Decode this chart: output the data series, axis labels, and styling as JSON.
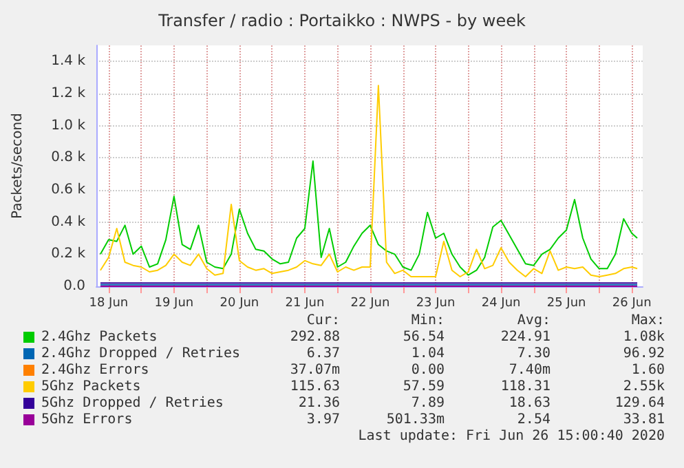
{
  "chart_data": {
    "type": "line",
    "title": "Transfer / radio : Portaikko : NWPS - by week",
    "ylabel": "Packets/second",
    "x": [
      "2020-06-18T09:00",
      "2020-06-18T12:00",
      "2020-06-18T15:00",
      "2020-06-18T18:00",
      "2020-06-18T21:00",
      "2020-06-19T00:00",
      "2020-06-19T03:00",
      "2020-06-19T06:00",
      "2020-06-19T09:00",
      "2020-06-19T12:00",
      "2020-06-19T15:00",
      "2020-06-19T18:00",
      "2020-06-19T21:00",
      "2020-06-20T00:00",
      "2020-06-20T03:00",
      "2020-06-20T06:00",
      "2020-06-20T09:00",
      "2020-06-20T12:00",
      "2020-06-20T15:00",
      "2020-06-20T18:00",
      "2020-06-20T21:00",
      "2020-06-21T00:00",
      "2020-06-21T03:00",
      "2020-06-21T06:00",
      "2020-06-21T09:00",
      "2020-06-21T12:00",
      "2020-06-21T15:00",
      "2020-06-21T18:00",
      "2020-06-21T21:00",
      "2020-06-22T00:00",
      "2020-06-22T03:00",
      "2020-06-22T06:00",
      "2020-06-22T09:00",
      "2020-06-22T12:00",
      "2020-06-22T15:00",
      "2020-06-22T18:00",
      "2020-06-22T21:00",
      "2020-06-23T00:00",
      "2020-06-23T03:00",
      "2020-06-23T06:00",
      "2020-06-23T09:00",
      "2020-06-23T12:00",
      "2020-06-23T15:00",
      "2020-06-23T18:00",
      "2020-06-23T21:00",
      "2020-06-24T00:00",
      "2020-06-24T03:00",
      "2020-06-24T06:00",
      "2020-06-24T09:00",
      "2020-06-24T12:00",
      "2020-06-24T15:00",
      "2020-06-24T18:00",
      "2020-06-24T21:00",
      "2020-06-25T00:00",
      "2020-06-25T03:00",
      "2020-06-25T06:00",
      "2020-06-25T09:00",
      "2020-06-25T12:00",
      "2020-06-25T15:00",
      "2020-06-25T18:00",
      "2020-06-25T21:00",
      "2020-06-26T00:00",
      "2020-06-26T03:00",
      "2020-06-26T06:00",
      "2020-06-26T09:00",
      "2020-06-26T12:00",
      "2020-06-26T14:00"
    ],
    "series": [
      {
        "name": "2.4Ghz Packets",
        "color": "#00cc00",
        "values": [
          200,
          290,
          280,
          380,
          200,
          250,
          120,
          140,
          290,
          560,
          260,
          230,
          380,
          150,
          120,
          110,
          200,
          480,
          330,
          230,
          220,
          170,
          140,
          150,
          300,
          360,
          780,
          180,
          360,
          120,
          150,
          250,
          330,
          380,
          260,
          220,
          200,
          120,
          100,
          200,
          460,
          300,
          330,
          200,
          120,
          70,
          100,
          180,
          370,
          410,
          320,
          230,
          140,
          130,
          200,
          230,
          300,
          350,
          540,
          300,
          170,
          110,
          110,
          200,
          420,
          330,
          300
        ]
      },
      {
        "name": "2.4Ghz Dropped / Retries",
        "color": "#0066b3",
        "x": [
          "2020-06-18T09:00",
          "2020-06-19T12:00",
          "2020-06-20T12:00",
          "2020-06-21T12:00",
          "2020-06-22T12:00",
          "2020-06-23T12:00",
          "2020-06-24T12:00",
          "2020-06-25T12:00",
          "2020-06-26T14:00"
        ],
        "values": [
          10,
          10,
          10,
          10,
          10,
          10,
          10,
          10,
          10
        ]
      },
      {
        "name": "2.4Ghz Errors",
        "color": "#ff8000",
        "values": [
          null,
          null,
          null,
          null,
          null,
          null,
          null,
          null,
          null,
          null,
          null,
          null,
          null,
          null,
          null,
          null,
          null,
          null,
          null,
          null,
          null,
          null,
          null,
          null,
          null,
          null,
          null,
          null,
          null,
          null,
          null,
          null,
          null,
          null,
          null,
          null,
          null,
          null,
          null,
          null,
          null,
          null,
          null,
          null,
          null,
          null,
          null,
          null,
          null,
          null,
          null,
          null,
          null,
          null,
          null,
          null,
          null,
          null,
          null,
          null,
          null,
          null,
          null,
          null,
          null,
          null,
          null
        ]
      },
      {
        "name": "5Ghz Packets",
        "color": "#ffcc00",
        "values": [
          100,
          180,
          360,
          150,
          130,
          120,
          90,
          100,
          130,
          200,
          150,
          130,
          200,
          110,
          70,
          80,
          510,
          160,
          120,
          100,
          110,
          80,
          90,
          100,
          120,
          160,
          140,
          130,
          200,
          90,
          120,
          100,
          120,
          120,
          1250,
          150,
          80,
          100,
          60,
          60,
          60,
          60,
          280,
          100,
          60,
          90,
          230,
          110,
          130,
          240,
          150,
          100,
          60,
          110,
          80,
          220,
          100,
          120,
          110,
          120,
          70,
          60,
          70,
          80,
          110,
          120,
          110
        ]
      },
      {
        "name": "5Ghz Dropped / Retries",
        "color": "#330099",
        "x": [
          "2020-06-18T09:00",
          "2020-06-19T12:00",
          "2020-06-20T12:00",
          "2020-06-21T12:00",
          "2020-06-22T12:00",
          "2020-06-23T12:00",
          "2020-06-24T12:00",
          "2020-06-25T12:00",
          "2020-06-26T14:00"
        ],
        "values": [
          20,
          20,
          20,
          20,
          20,
          20,
          20,
          20,
          20
        ]
      },
      {
        "name": "5Ghz Errors",
        "color": "#990099",
        "x": [
          "2020-06-18T09:00",
          "2020-06-20T12:00",
          "2020-06-22T12:00",
          "2020-06-24T12:00",
          "2020-06-26T14:00"
        ],
        "values": [
          0,
          0,
          0,
          0,
          0
        ]
      }
    ],
    "xlim": [
      "2020-06-18T07:30",
      "2020-06-26T16:00"
    ],
    "xticks": [
      {
        "value": "2020-06-18T12:00",
        "label": "18 Jun"
      },
      {
        "value": "2020-06-19T00:00",
        "label": null
      },
      {
        "value": "2020-06-19T12:00",
        "label": "19 Jun"
      },
      {
        "value": "2020-06-20T00:00",
        "label": null
      },
      {
        "value": "2020-06-20T12:00",
        "label": "20 Jun"
      },
      {
        "value": "2020-06-21T00:00",
        "label": null
      },
      {
        "value": "2020-06-21T12:00",
        "label": "21 Jun"
      },
      {
        "value": "2020-06-22T00:00",
        "label": null
      },
      {
        "value": "2020-06-22T12:00",
        "label": "22 Jun"
      },
      {
        "value": "2020-06-23T00:00",
        "label": null
      },
      {
        "value": "2020-06-23T12:00",
        "label": "23 Jun"
      },
      {
        "value": "2020-06-24T00:00",
        "label": null
      },
      {
        "value": "2020-06-24T12:00",
        "label": "24 Jun"
      },
      {
        "value": "2020-06-25T00:00",
        "label": null
      },
      {
        "value": "2020-06-25T12:00",
        "label": "25 Jun"
      },
      {
        "value": "2020-06-26T00:00",
        "label": null
      },
      {
        "value": "2020-06-26T12:00",
        "label": "26 Jun"
      }
    ],
    "ylim": [
      0,
      1500
    ],
    "yticks": [
      {
        "value": 0,
        "label": "0.0"
      },
      {
        "value": 200,
        "label": "0.2 k"
      },
      {
        "value": 400,
        "label": "0.4 k"
      },
      {
        "value": 600,
        "label": "0.6 k"
      },
      {
        "value": 800,
        "label": "0.8 k"
      },
      {
        "value": 1000,
        "label": "1.0 k"
      },
      {
        "value": 1200,
        "label": "1.2 k"
      },
      {
        "value": 1400,
        "label": "1.4 k"
      }
    ],
    "grid": true,
    "legend": "bottom left",
    "marker": "none",
    "line_style": "solid",
    "annotations": [
      "Cur:",
      "Min:",
      "Avg:",
      "Max:",
      "292.88",
      "56.54",
      "224.91",
      "1.08k",
      "6.37",
      "1.04",
      "7.30",
      "96.92",
      "37.07m",
      "0.00",
      "7.40m",
      "1.60",
      "115.63",
      "57.59",
      "118.31",
      "2.55k",
      "21.36",
      "7.89",
      "18.63",
      "129.64",
      "3.97",
      "501.33m",
      "2.54",
      "33.81",
      "Last update: Fri Jun 26 15:00:40 2020"
    ]
  }
}
